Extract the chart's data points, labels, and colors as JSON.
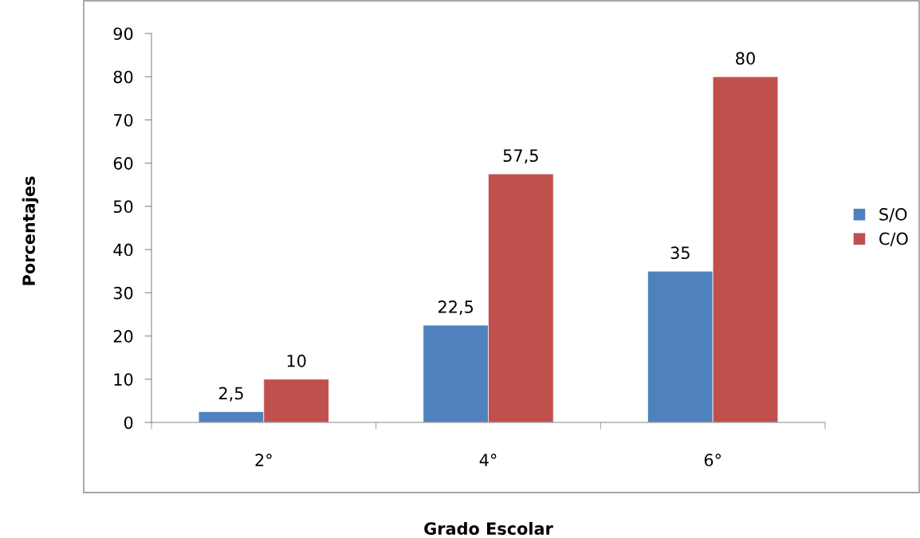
{
  "chart_data": {
    "type": "bar",
    "xlabel": "Grado Escolar",
    "ylabel": "Porcentajes",
    "categories": [
      "2°",
      "4°",
      "6°"
    ],
    "series": [
      {
        "name": "S/O",
        "color": "#4f81bd",
        "values": [
          2.5,
          22.5,
          35
        ],
        "value_labels": [
          "2,5",
          "22,5",
          "35"
        ]
      },
      {
        "name": "C/O",
        "color": "#c0504d",
        "values": [
          10,
          57.5,
          80
        ],
        "value_labels": [
          "10",
          "57,5",
          "80"
        ]
      }
    ],
    "ylim": [
      0,
      90
    ],
    "yticks": [
      0,
      10,
      20,
      30,
      40,
      50,
      60,
      70,
      80,
      90
    ],
    "grid": false,
    "legend": "right"
  }
}
